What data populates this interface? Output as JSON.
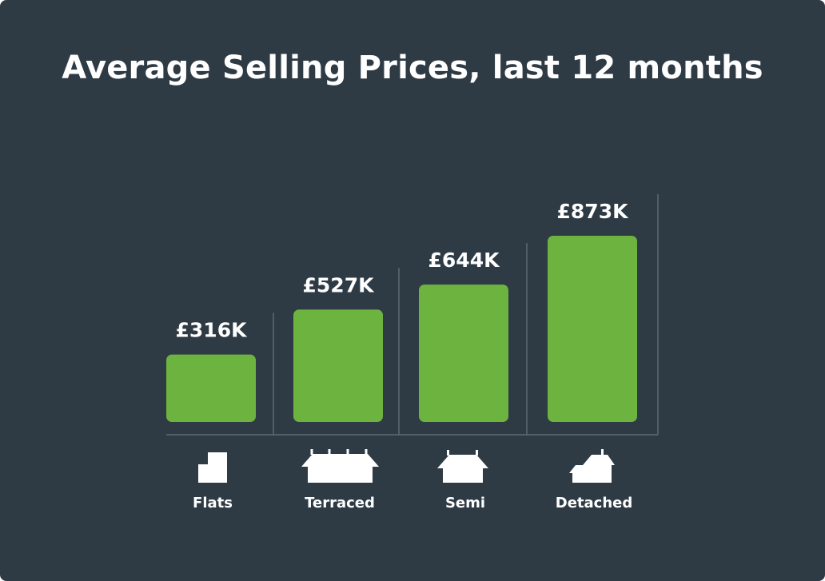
{
  "chart_data": {
    "type": "bar",
    "title": "Average Selling Prices, last 12 months",
    "xlabel": "",
    "ylabel": "",
    "ylim": [
      0,
      873
    ],
    "categories": [
      "Flats",
      "Terraced",
      "Semi",
      "Detached"
    ],
    "values": [
      316,
      527,
      644,
      873
    ],
    "value_labels": [
      "£316K",
      "£527K",
      "£644K",
      "£873K"
    ],
    "icons": [
      "flat-icon",
      "terraced-house-icon",
      "semi-house-icon",
      "detached-house-icon"
    ]
  },
  "colors": {
    "background": "#2e3b45",
    "bar": "#6db33f",
    "text": "#ffffff",
    "axis": "#5c6a74"
  }
}
